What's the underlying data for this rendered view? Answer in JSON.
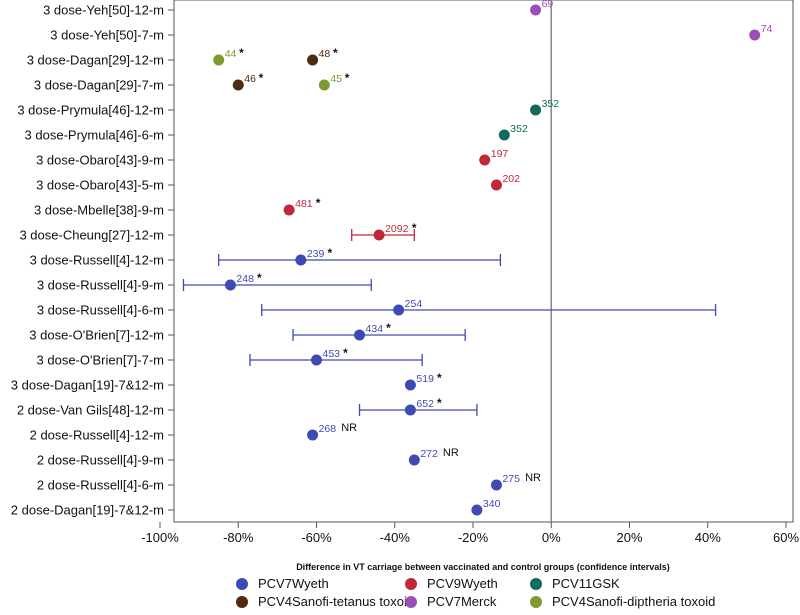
{
  "chart_data": {
    "type": "scatter",
    "subtype": "forest-plot",
    "title": "",
    "xlabel": "Difference in VT carriage between vaccinated and control groups (confidence intervals)",
    "ylabel": "",
    "xlim": [
      -100,
      60
    ],
    "x_ticks": [
      -100,
      -80,
      -60,
      -40,
      -20,
      0,
      20,
      40,
      60
    ],
    "x_tick_labels": [
      "-100%",
      "-80%",
      "-60%",
      "-40%",
      "-20%",
      "0%",
      "20%",
      "40%",
      "60%"
    ],
    "reference_line": 0,
    "grid": false,
    "legend_position": "bottom",
    "series": [
      {
        "name": "PCV7Wyeth",
        "color": "#3d4ab4"
      },
      {
        "name": "PCV9Wyeth",
        "color": "#c0283a"
      },
      {
        "name": "PCV11GSK",
        "color": "#0f6b5a"
      },
      {
        "name": "PCV4Sanofi-tetanus toxoid",
        "color": "#4f2a10"
      },
      {
        "name": "PCV7Merck",
        "color": "#9a4fb6"
      },
      {
        "name": "PCV4Sanofi-diptheria toxoid",
        "color": "#7f9a30"
      }
    ],
    "rows": [
      {
        "label": "3 dose-Yeh[50]-12-m",
        "points": [
          {
            "series": "PCV7Merck",
            "x": -4,
            "n": "69",
            "star": false
          }
        ]
      },
      {
        "label": "3 dose-Yeh[50]-7-m",
        "points": [
          {
            "series": "PCV7Merck",
            "x": 52,
            "n": "74",
            "star": false
          }
        ]
      },
      {
        "label": "3 dose-Dagan[29]-12-m",
        "points": [
          {
            "series": "PCV4Sanofi-diptheria toxoid",
            "x": -85,
            "n": "44",
            "star": true
          },
          {
            "series": "PCV4Sanofi-tetanus toxoid",
            "x": -61,
            "n": "48",
            "star": true
          }
        ]
      },
      {
        "label": "3 dose-Dagan[29]-7-m",
        "points": [
          {
            "series": "PCV4Sanofi-tetanus toxoid",
            "x": -80,
            "n": "46",
            "star": true
          },
          {
            "series": "PCV4Sanofi-diptheria toxoid",
            "x": -58,
            "n": "45",
            "star": true
          }
        ]
      },
      {
        "label": "3 dose-Prymula[46]-12-m",
        "points": [
          {
            "series": "PCV11GSK",
            "x": -4,
            "n": "352",
            "star": false
          }
        ]
      },
      {
        "label": "3 dose-Prymula[46]-6-m",
        "points": [
          {
            "series": "PCV11GSK",
            "x": -12,
            "n": "352",
            "star": false
          }
        ]
      },
      {
        "label": "3 dose-Obaro[43]-9-m",
        "points": [
          {
            "series": "PCV9Wyeth",
            "x": -17,
            "n": "197",
            "star": false
          }
        ]
      },
      {
        "label": "3 dose-Obaro[43]-5-m",
        "points": [
          {
            "series": "PCV9Wyeth",
            "x": -14,
            "n": "202",
            "star": false
          }
        ]
      },
      {
        "label": "3 dose-Mbelle[38]-9-m",
        "points": [
          {
            "series": "PCV9Wyeth",
            "x": -67,
            "n": "481",
            "star": true
          }
        ]
      },
      {
        "label": "3 dose-Cheung[27]-12-m",
        "points": [
          {
            "series": "PCV9Wyeth",
            "x": -44,
            "lo": -51,
            "hi": -35,
            "n": "2092",
            "star": true
          }
        ]
      },
      {
        "label": "3 dose-Russell[4]-12-m",
        "points": [
          {
            "series": "PCV7Wyeth",
            "x": -64,
            "lo": -85,
            "hi": -13,
            "n": "239",
            "star": true
          }
        ]
      },
      {
        "label": "3 dose-Russell[4]-9-m",
        "points": [
          {
            "series": "PCV7Wyeth",
            "x": -82,
            "lo": -94,
            "hi": -46,
            "n": "248",
            "star": true
          }
        ]
      },
      {
        "label": "3 dose-Russell[4]-6-m",
        "points": [
          {
            "series": "PCV7Wyeth",
            "x": -39,
            "lo": -74,
            "hi": 42,
            "n": "254",
            "star": false
          }
        ]
      },
      {
        "label": "3 dose-O'Brien[7]-12-m",
        "points": [
          {
            "series": "PCV7Wyeth",
            "x": -49,
            "lo": -66,
            "hi": -22,
            "n": "434",
            "star": true
          }
        ]
      },
      {
        "label": "3 dose-O'Brien[7]-7-m",
        "points": [
          {
            "series": "PCV7Wyeth",
            "x": -60,
            "lo": -77,
            "hi": -33,
            "n": "453",
            "star": true
          }
        ]
      },
      {
        "label": "3 dose-Dagan[19]-7&12-m",
        "points": [
          {
            "series": "PCV7Wyeth",
            "x": -36,
            "n": "519",
            "star": true
          }
        ]
      },
      {
        "label": "2 dose-Van Gils[48]-12-m",
        "points": [
          {
            "series": "PCV7Wyeth",
            "x": -36,
            "lo": -49,
            "hi": -19,
            "n": "652",
            "star": true
          }
        ]
      },
      {
        "label": "2 dose-Russell[4]-12-m",
        "points": [
          {
            "series": "PCV7Wyeth",
            "x": -61,
            "n": "268",
            "star": false,
            "note": "NR"
          }
        ]
      },
      {
        "label": "2 dose-Russell[4]-9-m",
        "points": [
          {
            "series": "PCV7Wyeth",
            "x": -35,
            "n": "272",
            "star": false,
            "note": "NR"
          }
        ]
      },
      {
        "label": "2 dose-Russell[4]-6-m",
        "points": [
          {
            "series": "PCV7Wyeth",
            "x": -14,
            "n": "275",
            "star": false,
            "note": "NR"
          }
        ]
      },
      {
        "label": "2 dose-Dagan[19]-7&12-m",
        "points": [
          {
            "series": "PCV7Wyeth",
            "x": -19,
            "n": "340",
            "star": false
          }
        ]
      }
    ]
  }
}
